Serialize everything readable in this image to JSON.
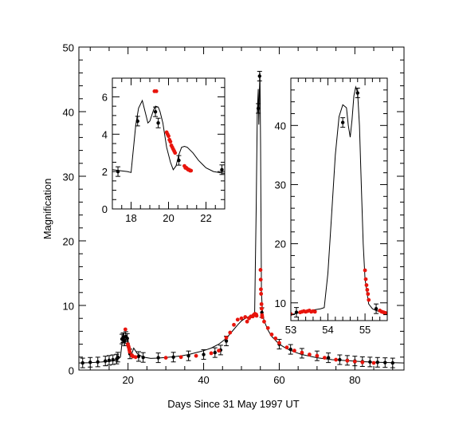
{
  "chart_data": [
    {
      "panel": "main",
      "type": "scatter",
      "xlabel": "Days Since 31 May 1997 UT",
      "ylabel": "Magnification",
      "xlim": [
        7,
        93
      ],
      "ylim": [
        0,
        50
      ],
      "xticks": [
        20,
        40,
        60,
        80
      ],
      "yticks": [
        0,
        10,
        20,
        30,
        40,
        50
      ],
      "grid": false,
      "series": [
        {
          "color": "#000000",
          "kind": "model curve",
          "x": [
            7,
            10,
            13,
            15,
            17,
            18,
            18.5,
            18.8,
            19.1,
            19.4,
            19.7,
            20.0,
            20.4,
            20.8,
            21.5,
            22.5,
            24,
            26,
            28,
            30,
            32,
            34,
            36,
            38,
            40,
            42,
            44,
            46,
            47,
            48,
            49,
            50,
            51,
            52,
            53,
            53.5,
            53.9,
            54.2,
            54.45,
            54.6,
            54.75,
            54.9,
            55.05,
            55.3,
            55.6,
            56,
            57,
            58,
            60,
            62,
            64,
            66,
            70,
            74,
            78,
            82,
            86,
            90,
            93
          ],
          "y": [
            1.1,
            1.15,
            1.25,
            1.35,
            1.5,
            2.0,
            4.8,
            5.8,
            4.2,
            4.9,
            5.2,
            4.7,
            2.6,
            2.2,
            3.4,
            2.5,
            2.0,
            1.8,
            1.85,
            1.95,
            2.05,
            2.2,
            2.4,
            2.7,
            3.0,
            3.4,
            4.0,
            4.9,
            5.6,
            6.3,
            7.0,
            7.6,
            8.0,
            8.3,
            8.5,
            9.0,
            25,
            40,
            43.5,
            38,
            43,
            46,
            35,
            12,
            8.6,
            7.6,
            6.2,
            5.2,
            4.0,
            3.3,
            2.8,
            2.4,
            1.9,
            1.6,
            1.45,
            1.3,
            1.2,
            1.15,
            1.1
          ]
        },
        {
          "color": "#000000",
          "kind": "data with error bars",
          "x": [
            8,
            10,
            12,
            14,
            15,
            16,
            17,
            17.3,
            18.4,
            18.7,
            19.1,
            19.4,
            19.8,
            20.5,
            22.8,
            24,
            28,
            32,
            36,
            40,
            43,
            44.5,
            46,
            54.45,
            54.8,
            55.4,
            60,
            63,
            66,
            70,
            73,
            76,
            78,
            80,
            82,
            84,
            86,
            88,
            90
          ],
          "y": [
            1.1,
            1.2,
            1.25,
            1.4,
            1.5,
            1.6,
            1.7,
            2.0,
            4.8,
            5.0,
            4.5,
            5.2,
            4.9,
            2.5,
            2.1,
            1.95,
            1.9,
            2.0,
            2.2,
            2.4,
            2.7,
            3.1,
            4.5,
            40.5,
            45.5,
            8.9,
            4.0,
            3.2,
            2.6,
            2.2,
            1.9,
            1.6,
            1.5,
            1.4,
            1.3,
            1.25,
            1.2,
            1.15,
            1.1
          ]
        },
        {
          "color": "#e8140c",
          "kind": "data points",
          "x": [
            19.3,
            19.95,
            20.05,
            20.15,
            20.25,
            20.35,
            20.45,
            21.0,
            21.1,
            21.2,
            21.3,
            22.0,
            30,
            34,
            38,
            42,
            44,
            46,
            47,
            48,
            49,
            50,
            51,
            51.5,
            52,
            52.5,
            53,
            53.2,
            53.4,
            53.6,
            53.8,
            53.9,
            54.0,
            55.05,
            55.1,
            55.15,
            55.2,
            55.3,
            55.35,
            55.45,
            55.5,
            56,
            57,
            58,
            59,
            60,
            62,
            64,
            66,
            68,
            70,
            72,
            75,
            78,
            80,
            82,
            85
          ],
          "y": [
            6.3,
            4.0,
            3.8,
            3.6,
            3.4,
            3.1,
            2.8,
            2.3,
            2.2,
            2.15,
            2.1,
            2.0,
            1.9,
            2.0,
            2.2,
            2.6,
            3.0,
            5.0,
            5.8,
            7.0,
            7.8,
            8.0,
            8.2,
            7.5,
            8.0,
            8.3,
            8.3,
            8.5,
            8.6,
            8.7,
            8.5,
            8.6,
            8.4,
            15.5,
            14.0,
            12.5,
            11.8,
            10.2,
            9.5,
            8.5,
            8.2,
            7.5,
            6.5,
            5.5,
            4.9,
            4.2,
            3.5,
            3.0,
            2.7,
            2.4,
            2.2,
            1.9,
            1.6,
            1.45,
            1.3,
            1.2,
            1.1
          ]
        }
      ]
    },
    {
      "panel": "inset-left",
      "type": "scatter",
      "xlim": [
        17,
        23
      ],
      "ylim": [
        0,
        7
      ],
      "xticks": [
        18,
        20,
        22
      ],
      "yticks": [
        0,
        2,
        4,
        6
      ],
      "grid": false,
      "series": [
        {
          "color": "#000000",
          "kind": "model curve",
          "x": [
            17.0,
            17.4,
            17.8,
            18.0,
            18.1,
            18.25,
            18.4,
            18.6,
            18.8,
            18.9,
            19.0,
            19.1,
            19.2,
            19.3,
            19.45,
            19.55,
            19.7,
            19.9,
            20.1,
            20.25,
            20.4,
            20.55,
            20.7,
            20.85,
            21.0,
            21.3,
            21.6,
            22.0,
            22.4,
            23.0
          ],
          "y": [
            2.1,
            2.05,
            2.0,
            1.95,
            3.0,
            4.5,
            5.4,
            5.8,
            5.0,
            4.6,
            4.7,
            5.0,
            5.3,
            5.5,
            5.45,
            5.2,
            4.6,
            3.3,
            2.5,
            2.1,
            2.3,
            2.9,
            3.3,
            3.35,
            3.3,
            3.0,
            2.6,
            2.2,
            2.0,
            1.9
          ]
        },
        {
          "color": "#000000",
          "kind": "data with error bars",
          "x": [
            17.3,
            18.35,
            19.3,
            19.45,
            20.55,
            22.85
          ],
          "y": [
            2.0,
            4.7,
            5.2,
            4.6,
            2.6,
            2.1
          ]
        },
        {
          "color": "#e8140c",
          "kind": "data points",
          "x": [
            19.25,
            19.35,
            19.9,
            19.95,
            20.0,
            20.05,
            20.1,
            20.15,
            20.2,
            20.25,
            20.3,
            20.35,
            20.85,
            20.9,
            20.95,
            21.0,
            21.05,
            21.1,
            21.15,
            21.2
          ],
          "y": [
            6.3,
            6.3,
            4.1,
            4.0,
            3.9,
            3.7,
            3.6,
            3.4,
            3.3,
            3.2,
            3.1,
            3.0,
            2.3,
            2.2,
            2.2,
            2.15,
            2.1,
            2.1,
            2.05,
            2.05
          ]
        }
      ]
    },
    {
      "panel": "inset-right",
      "type": "scatter",
      "xlim": [
        53.0,
        55.6
      ],
      "ylim": [
        7,
        48
      ],
      "xticks": [
        53,
        54,
        55
      ],
      "yticks": [
        10,
        20,
        30,
        40
      ],
      "grid": false,
      "series": [
        {
          "color": "#000000",
          "kind": "model curve",
          "x": [
            53.0,
            53.2,
            53.4,
            53.6,
            53.8,
            53.9,
            54.0,
            54.1,
            54.2,
            54.3,
            54.4,
            54.5,
            54.55,
            54.6,
            54.65,
            54.7,
            54.75,
            54.8,
            54.85,
            54.9,
            54.95,
            55.0,
            55.1,
            55.2,
            55.3,
            55.4,
            55.5,
            55.6
          ],
          "y": [
            8.0,
            8.3,
            8.5,
            8.8,
            9.0,
            9.2,
            15,
            25,
            35,
            41.5,
            43.5,
            43,
            40,
            38,
            41,
            45,
            46.5,
            45.5,
            40,
            30,
            20,
            14,
            9.8,
            9.0,
            8.7,
            8.5,
            8.3,
            8.1
          ]
        },
        {
          "color": "#000000",
          "kind": "data with error bars",
          "x": [
            53.15,
            54.4,
            54.8,
            55.3
          ],
          "y": [
            8.4,
            40.5,
            45.5,
            9.0
          ]
        },
        {
          "color": "#e8140c",
          "kind": "data points",
          "x": [
            53.0,
            53.25,
            53.3,
            53.35,
            53.4,
            53.45,
            53.5,
            53.55,
            53.6,
            53.65,
            55.0,
            55.02,
            55.04,
            55.06,
            55.08,
            55.1,
            55.4,
            55.45,
            55.5,
            55.55
          ],
          "y": [
            8.1,
            8.4,
            8.5,
            8.6,
            8.5,
            8.6,
            8.7,
            8.5,
            8.6,
            8.5,
            15.5,
            14.0,
            13.0,
            12.2,
            11.5,
            10.5,
            8.7,
            8.5,
            8.4,
            8.3
          ]
        }
      ]
    }
  ]
}
